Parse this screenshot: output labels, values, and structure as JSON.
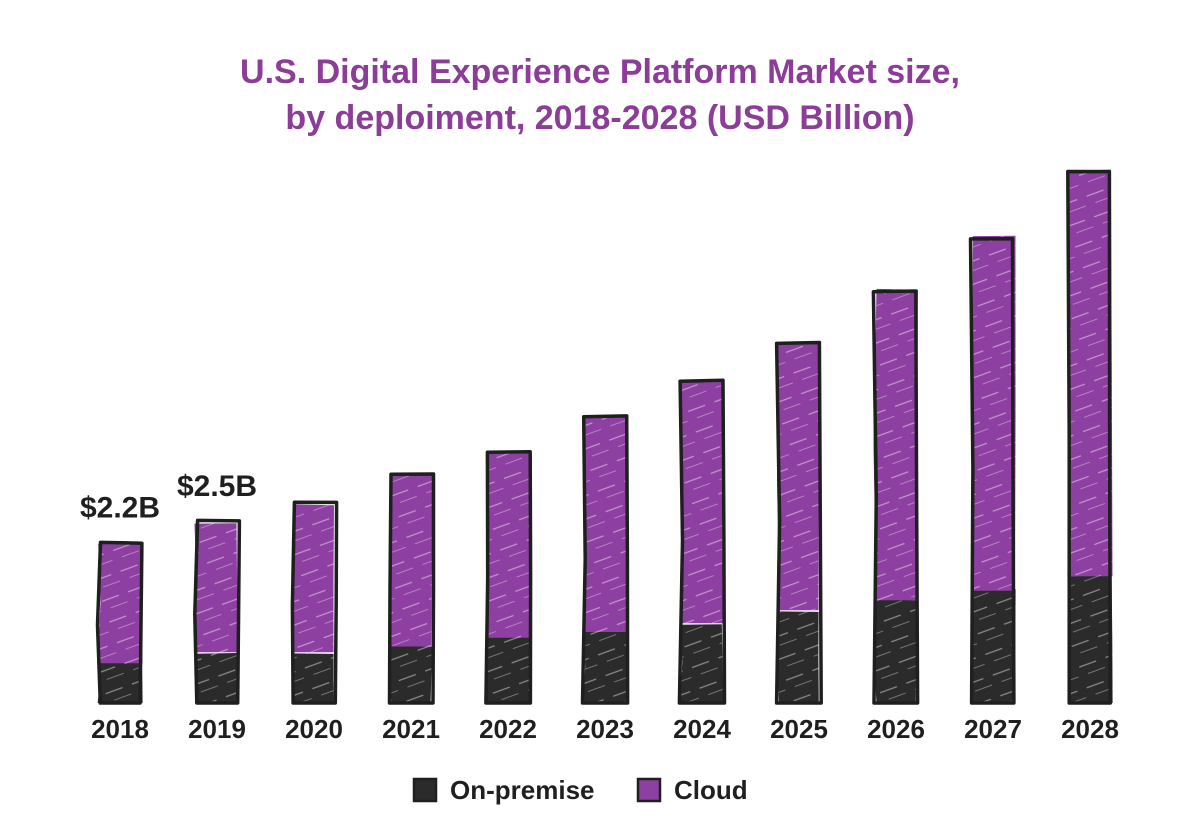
{
  "colors": {
    "title": "#8b3d97",
    "on_premise": "#2b2b2b",
    "cloud": "#8e3fa2",
    "outline": "#1f1f1f",
    "text": "#1f1f1f",
    "hatch": "#ffffff"
  },
  "chart_data": {
    "type": "bar",
    "stacked": true,
    "title_lines": [
      "U.S. Digital Experience Platform Market size,",
      "by deploiment, 2018-2028 (USD Billion)"
    ],
    "categories": [
      "2018",
      "2019",
      "2020",
      "2021",
      "2022",
      "2023",
      "2024",
      "2025",
      "2026",
      "2027",
      "2028"
    ],
    "series": [
      {
        "name": "On-premise",
        "color_key": "on_premise",
        "values": [
          0.55,
          0.7,
          0.7,
          0.78,
          0.9,
          0.98,
          1.1,
          1.28,
          1.42,
          1.55,
          1.75
        ]
      },
      {
        "name": "Cloud",
        "color_key": "cloud",
        "values": [
          1.65,
          1.8,
          2.05,
          2.36,
          2.55,
          2.97,
          3.35,
          3.7,
          4.28,
          4.88,
          5.61
        ]
      }
    ],
    "data_labels": [
      {
        "category": "2018",
        "text": "$2.2B"
      },
      {
        "category": "2019",
        "text": "$2.5B"
      }
    ],
    "ylim": [
      0,
      7.36
    ],
    "grid": false,
    "legend_position": "bottom-center",
    "xlabel": "",
    "ylabel": ""
  }
}
